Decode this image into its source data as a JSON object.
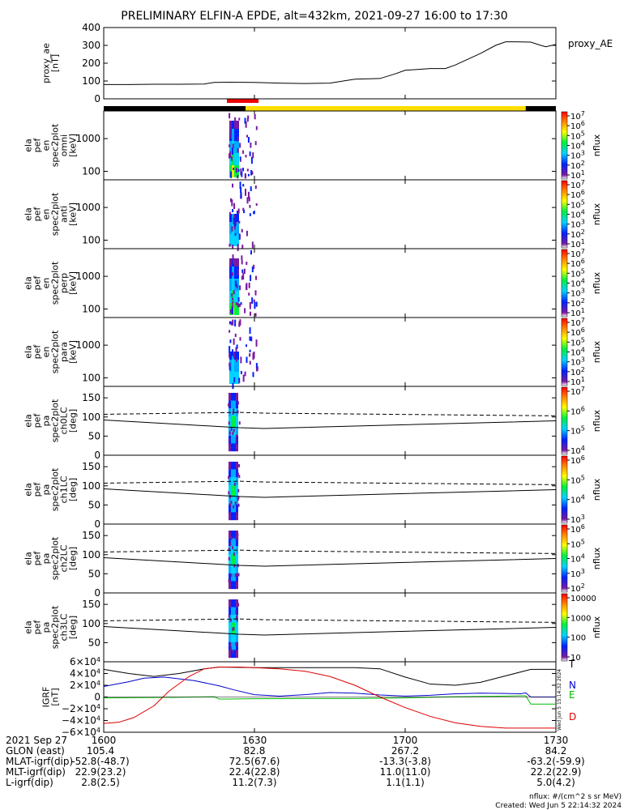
{
  "title": "PRELIMINARY ELFIN-A EPDE, alt=432km, 2021-09-27 16:00 to 17:30",
  "colors": {
    "dashed_line": "#000000",
    "solid_line": "#000000",
    "igrf_T": "#000000",
    "igrf_N": "#0000cc",
    "igrf_E": "#00bb00",
    "igrf_D": "#dd0000",
    "sci_bar_black": "#000000",
    "sci_bar_yellow": "#ffdd00",
    "sci_zone_red": "#ee0000"
  },
  "side_stamp": "Wed Jun  5 15:14:32 2024",
  "chart_data": [
    {
      "type": "line",
      "id": "proxy_ae",
      "ylabel": [
        "proxy_ae",
        "[nT]"
      ],
      "legend": "proxy_AE",
      "yticks": [
        "400",
        "300",
        "200",
        "100",
        "0"
      ],
      "ylim": [
        0,
        400
      ],
      "xlim": [
        1600,
        1730
      ],
      "x": [
        1600,
        1605,
        1610,
        1615,
        1620,
        1622,
        1625,
        1630,
        1635,
        1640,
        1645,
        1650,
        1655,
        1658,
        1700,
        1705,
        1708,
        1710,
        1715,
        1718,
        1720,
        1722,
        1725,
        1727,
        1728,
        1730
      ],
      "y": [
        80,
        80,
        82,
        82,
        83,
        92,
        93,
        92,
        88,
        86,
        88,
        110,
        114,
        140,
        160,
        170,
        170,
        190,
        255,
        300,
        320,
        320,
        318,
        300,
        292,
        305
      ]
    },
    {
      "type": "heatmap",
      "id": "en_omni",
      "ylabel": [
        "ela",
        "pef",
        "en",
        "spec2plot",
        "omni",
        "[keV]"
      ],
      "yscale": "log",
      "yticks": [
        "1000",
        "100"
      ],
      "ylim": [
        55,
        7000
      ],
      "colorbar": {
        "label": "nflux",
        "ticks": [
          "10^7",
          "10^6",
          "10^5",
          "10^4",
          "10^3",
          "10^2",
          "10^1"
        ]
      }
    },
    {
      "type": "heatmap",
      "id": "en_anti",
      "ylabel": [
        "ela",
        "pef",
        "en",
        "spec2plot",
        "anti",
        "[keV]"
      ],
      "yscale": "log",
      "yticks": [
        "1000",
        "100"
      ],
      "ylim": [
        55,
        7000
      ],
      "colorbar": {
        "label": "nflux",
        "ticks": [
          "10^7",
          "10^6",
          "10^5",
          "10^4",
          "10^3",
          "10^2",
          "10^1"
        ]
      }
    },
    {
      "type": "heatmap",
      "id": "en_perp",
      "ylabel": [
        "ela",
        "pef",
        "en",
        "spec2plot",
        "perp",
        "[keV]"
      ],
      "yscale": "log",
      "yticks": [
        "1000",
        "100"
      ],
      "ylim": [
        55,
        7000
      ],
      "colorbar": {
        "label": "nflux",
        "ticks": [
          "10^7",
          "10^6",
          "10^5",
          "10^4",
          "10^3",
          "10^2",
          "10^1"
        ]
      }
    },
    {
      "type": "heatmap",
      "id": "en_para",
      "ylabel": [
        "ela",
        "pef",
        "en",
        "spec2plot",
        "para",
        "[keV]"
      ],
      "yscale": "log",
      "yticks": [
        "1000",
        "100"
      ],
      "ylim": [
        55,
        7000
      ],
      "colorbar": {
        "label": "nflux",
        "ticks": [
          "10^7",
          "10^6",
          "10^5",
          "10^4",
          "10^3",
          "10^2",
          "10^1"
        ]
      }
    },
    {
      "type": "heatmap",
      "id": "pa_ch0",
      "ylabel": [
        "ela",
        "pef",
        "pa",
        "spec2plot",
        "ch0LC",
        "[deg]"
      ],
      "yticks": [
        "150",
        "100",
        "50",
        "0"
      ],
      "ylim": [
        0,
        180
      ],
      "colorbar": {
        "label": "nflux",
        "ticks": [
          "10^7",
          "10^6",
          "10^5",
          "10^4"
        ]
      }
    },
    {
      "type": "heatmap",
      "id": "pa_ch1",
      "ylabel": [
        "ela",
        "pef",
        "pa",
        "spec2plot",
        "ch1LC",
        "[deg]"
      ],
      "yticks": [
        "150",
        "100",
        "50",
        "0"
      ],
      "ylim": [
        0,
        180
      ],
      "colorbar": {
        "label": "nflux",
        "ticks": [
          "10^6",
          "10^5",
          "10^4",
          "10^3"
        ]
      }
    },
    {
      "type": "heatmap",
      "id": "pa_ch2",
      "ylabel": [
        "ela",
        "pef",
        "pa",
        "spec2plot",
        "ch2LC",
        "[deg]"
      ],
      "yticks": [
        "150",
        "100",
        "50",
        "0"
      ],
      "ylim": [
        0,
        180
      ],
      "colorbar": {
        "label": "nflux",
        "ticks": [
          "10^6",
          "10^5",
          "10^4",
          "10^3",
          "10^2"
        ]
      }
    },
    {
      "type": "heatmap",
      "id": "pa_ch3",
      "ylabel": [
        "ela",
        "pef",
        "pa",
        "spec2plot",
        "ch3LC",
        "[deg]"
      ],
      "yticks": [
        "150",
        "100",
        "50"
      ],
      "ylim": [
        0,
        180
      ],
      "colorbar": {
        "label": "nflux",
        "ticks": [
          "10000",
          "1000",
          "100",
          "10"
        ]
      }
    },
    {
      "type": "line",
      "id": "igrf",
      "ylabel": [
        "IGRF",
        "[nT]"
      ],
      "yticks": [
        "6×10^4",
        "4×10^4",
        "2×10^4",
        "0",
        "−2×10^4",
        "−4×10^4",
        "−6×10^4"
      ],
      "ylim": [
        -60000,
        60000
      ],
      "xlim": [
        1600,
        1730
      ],
      "series": [
        {
          "name": "T",
          "x": [
            1600,
            1605,
            1610,
            1615,
            1620,
            1623,
            1630,
            1640,
            1650,
            1655,
            1700,
            1705,
            1710,
            1715,
            1720,
            1725,
            1730
          ],
          "y": [
            47000,
            40000,
            35000,
            40000,
            48000,
            51000,
            50000,
            50000,
            50000,
            48000,
            34000,
            22000,
            20000,
            25000,
            36000,
            47000,
            47000
          ]
        },
        {
          "name": "N",
          "x": [
            1600,
            1605,
            1608,
            1612,
            1618,
            1623,
            1626,
            1630,
            1635,
            1640,
            1645,
            1650,
            1655,
            1700,
            1705,
            1710,
            1715,
            1720,
            1723,
            1724,
            1725,
            1730
          ],
          "y": [
            18000,
            26000,
            32000,
            34000,
            28000,
            19000,
            12000,
            4000,
            1500,
            4000,
            7500,
            6500,
            3500,
            1500,
            3000,
            5500,
            6500,
            6000,
            5500,
            7000,
            0,
            0
          ]
        },
        {
          "name": "E",
          "x": [
            1600,
            1615,
            1622,
            1623,
            1625,
            1630,
            1640,
            1650,
            1700,
            1710,
            1720,
            1723,
            1724,
            1725,
            1730
          ],
          "y": [
            -1500,
            -500,
            500,
            -3500,
            -3500,
            -3000,
            -2500,
            -2500,
            -1500,
            500,
            1500,
            2000,
            2000,
            -12000,
            -12000
          ]
        },
        {
          "name": "D",
          "x": [
            1600,
            1603,
            1606,
            1610,
            1613,
            1617,
            1620,
            1623,
            1627,
            1630,
            1635,
            1640,
            1645,
            1650,
            1655,
            1700,
            1705,
            1710,
            1715,
            1720,
            1725,
            1730
          ],
          "y": [
            -45000,
            -43000,
            -35000,
            -15000,
            10000,
            35000,
            48000,
            51000,
            51000,
            50000,
            48000,
            44000,
            35000,
            20000,
            0,
            -18000,
            -33000,
            -44000,
            -50000,
            -53000,
            -53000,
            -53000
          ]
        }
      ]
    }
  ],
  "ephemeris": {
    "row_labels": [
      "2021 Sep 27",
      "GLON (east)",
      "MLAT-igrf(dip)",
      "MLT-igrf(dip)",
      "L-igrf(dip)"
    ],
    "columns": [
      {
        "time": "1600",
        "values": [
          "105.4",
          "-52.8(-48.7)",
          "22.9(23.2)",
          "2.8(2.5)"
        ]
      },
      {
        "time": "1630",
        "values": [
          "82.8",
          "72.5(67.6)",
          "22.4(22.8)",
          "11.2(7.3)"
        ]
      },
      {
        "time": "1700",
        "values": [
          "267.2",
          "-13.3(-3.8)",
          "11.0(11.0)",
          "1.1(1.1)"
        ]
      },
      {
        "time": "1730",
        "values": [
          "84.2",
          "-63.2(-59.9)",
          "22.2(22.9)",
          "5.0(4.2)"
        ]
      }
    ]
  },
  "footer": {
    "units": "nflux: #/(cm^2 s sr MeV)",
    "created": "Created: Wed Jun  5 22:14:32 2024"
  }
}
